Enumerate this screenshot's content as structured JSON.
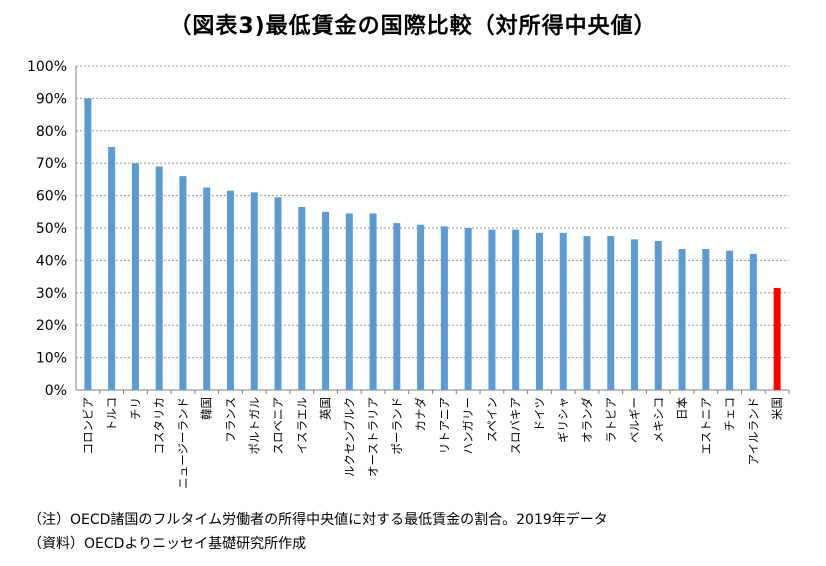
{
  "chart_data": {
    "type": "bar",
    "title": "（図表3)最低賃金の国際比較（対所得中央値）",
    "categories": [
      "コロンビア",
      "トルコ",
      "チリ",
      "コスタリカ",
      "ニュージーランド",
      "韓国",
      "フランス",
      "ポルトガル",
      "スロベニア",
      "イスラエル",
      "英国",
      "ルクセンブルク",
      "オーストラリア",
      "ポーランド",
      "カナダ",
      "リトアニア",
      "ハンガリー",
      "スペイン",
      "スロバキア",
      "ドイツ",
      "ギリシャ",
      "オランダ",
      "ラトビア",
      "ベルギー",
      "メキシコ",
      "日本",
      "エストニア",
      "チェコ",
      "アイルランド",
      "米国"
    ],
    "values": [
      90,
      75,
      70,
      69,
      66,
      62.5,
      61.5,
      61,
      59.5,
      56.5,
      55,
      54.5,
      54.5,
      51.5,
      51,
      50.5,
      50,
      49.5,
      49.5,
      48.5,
      48.5,
      47.5,
      47.5,
      46.5,
      46,
      43.5,
      43.5,
      43,
      42,
      31.5
    ],
    "highlight": [
      "米国"
    ],
    "ylim": [
      0,
      100
    ],
    "yticks": [
      "0%",
      "10%",
      "20%",
      "30%",
      "40%",
      "50%",
      "60%",
      "70%",
      "80%",
      "90%",
      "100%"
    ],
    "grid": true,
    "colors": {
      "bar": "#5b9bd5",
      "highlight": "#ff0000",
      "grid": "#9a9a9a",
      "axis": "#7f7f7f"
    }
  },
  "notes": {
    "note": "（注）OECD諸国のフルタイム労働者の所得中央値に対する最低賃金の割合。2019年データ",
    "source": "（資料）OECDよりニッセイ基礎研究所作成"
  }
}
